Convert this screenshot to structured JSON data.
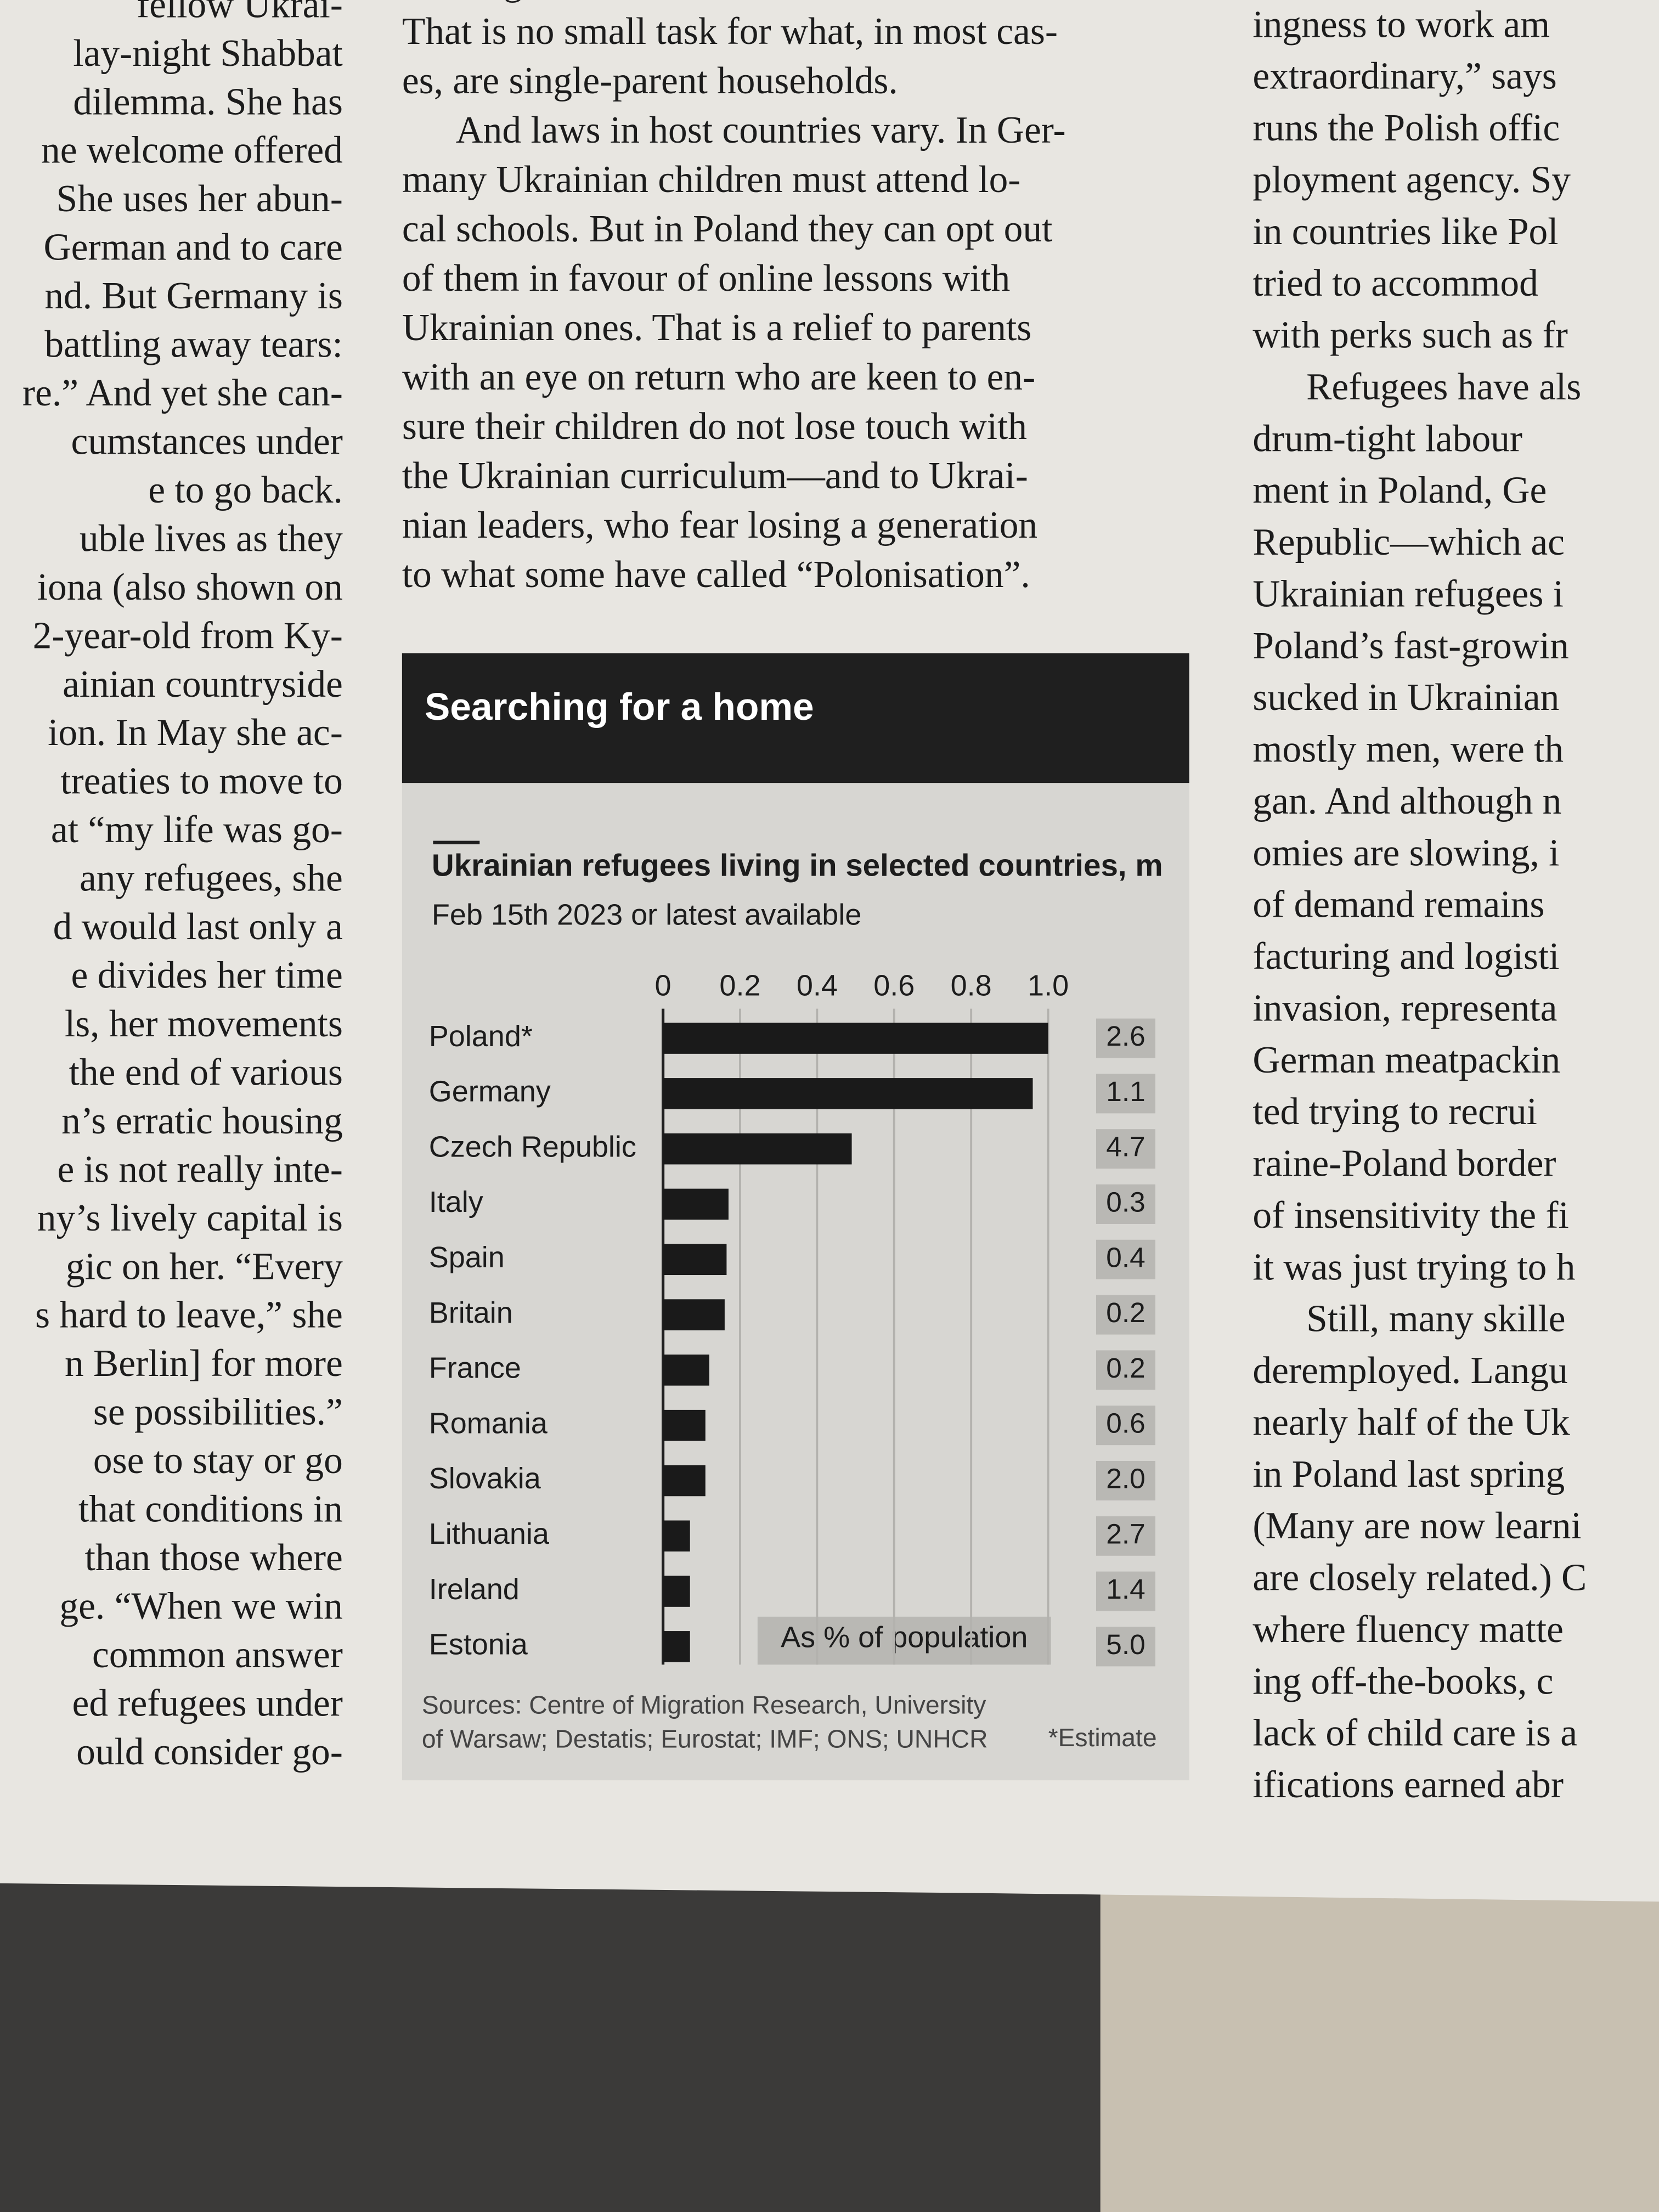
{
  "article": {
    "left_column": [
      "fellow Ukrai-",
      "lay-night Shabbat",
      "dilemma. She has",
      "ne welcome offered",
      "She uses her abun-",
      "German and to care",
      "nd. But Germany is",
      "battling away tears:",
      "re.” And yet she can-",
      "cumstances under",
      "e to go back.",
      "uble lives as they",
      "iona (also shown on",
      "2-year-old from Ky-",
      "ainian countryside",
      "ion. In May she ac-",
      "treaties to move to",
      "at “my life was go-",
      "any refugees, she",
      "d would last only a",
      "e divides her time",
      "ls, her movements",
      "the end of various",
      "n’s erratic housing",
      "e is not really inte-",
      "ny’s lively capital is",
      "gic on her. “Every",
      "s hard to leave,” she",
      "n Berlin] for more",
      "se possibilities.”",
      "ose to stay or go",
      "that conditions in",
      "than those where",
      "ge. “When we win",
      "common answer",
      "ed refugees under",
      "ould consider go-"
    ],
    "middle_column": [
      "evening",
      "That is no small task for what, in most cas-",
      "es, are single-parent households.",
      "And laws in host countries vary. In Ger-",
      "many Ukrainian children must attend lo-",
      "cal schools. But in Poland they can opt out",
      "of them in favour of online lessons with",
      "Ukrainian ones. That is a relief to parents",
      "with an eye on return who are keen to en-",
      "sure their children do not lose touch with",
      "the Ukrainian curriculum—and to Ukrai-",
      "nian leaders, who fear losing a generation",
      "to what some have called “Polonisation”."
    ],
    "right_column": [
      "ingness to work am",
      "extraordinary,” says",
      "runs the Polish offic",
      "ployment agency. Sy",
      "in countries like Pol",
      "tried to accommod",
      "with perks such as fr",
      "Refugees have als",
      "drum-tight labour",
      "ment in Poland, Ge",
      "Republic—which ac",
      "Ukrainian refugees i",
      "Poland’s fast-growin",
      "sucked in Ukrainian",
      "mostly men, were th",
      "gan. And although n",
      "omies are slowing, i",
      "of demand remains",
      "facturing and logisti",
      "invasion, representa",
      "German meatpackin",
      "ted trying to recrui",
      "raine-Poland border",
      "of insensitivity the fi",
      "it was just trying to h",
      "Still, many skille",
      "deremployed. Langu",
      "nearly half of the Uk",
      "in Poland last spring",
      "(Many are now learni",
      "are closely related.) C",
      "where fluency matte",
      "ing off-the-books, c",
      "lack of child care is a",
      "ifications earned abr"
    ]
  },
  "chart_data": {
    "type": "bar",
    "orientation": "horizontal",
    "header": "Searching for a home",
    "title": "Ukrainian refugees living in selected countries, m",
    "subtitle": "Feb 15th 2023 or latest available",
    "categories": [
      "Poland*",
      "Germany",
      "Czech Republic",
      "Italy",
      "Spain",
      "Britain",
      "France",
      "Romania",
      "Slovakia",
      "Lithuania",
      "Ireland",
      "Estonia"
    ],
    "values": [
      1.0,
      0.96,
      0.49,
      0.17,
      0.165,
      0.16,
      0.12,
      0.11,
      0.11,
      0.07,
      0.07,
      0.07
    ],
    "color": "#1a1a1a",
    "xlim": [
      0,
      1.0
    ],
    "xticks": [
      0,
      0.2,
      0.4,
      0.6,
      0.8,
      {
        "value": 1.0,
        "label": "1.0"
      }
    ],
    "grid": true,
    "population_share": {
      "name": "As % of population",
      "values": [
        2.6,
        1.1,
        4.7,
        0.3,
        0.4,
        0.2,
        0.2,
        0.6,
        2.0,
        2.7,
        1.4,
        5.0
      ],
      "value_labels": [
        "2.6",
        "1.1",
        "4.7",
        "0.3",
        "0.4",
        "0.2",
        "0.2",
        "0.6",
        "2.0",
        "2.7",
        "1.4",
        "5.0"
      ]
    },
    "source": [
      "Sources: Centre of Migration Research, University",
      "of Warsaw; Destatis; Eurostat; IMF; ONS; UNHCR"
    ],
    "note": "*Estimate"
  }
}
